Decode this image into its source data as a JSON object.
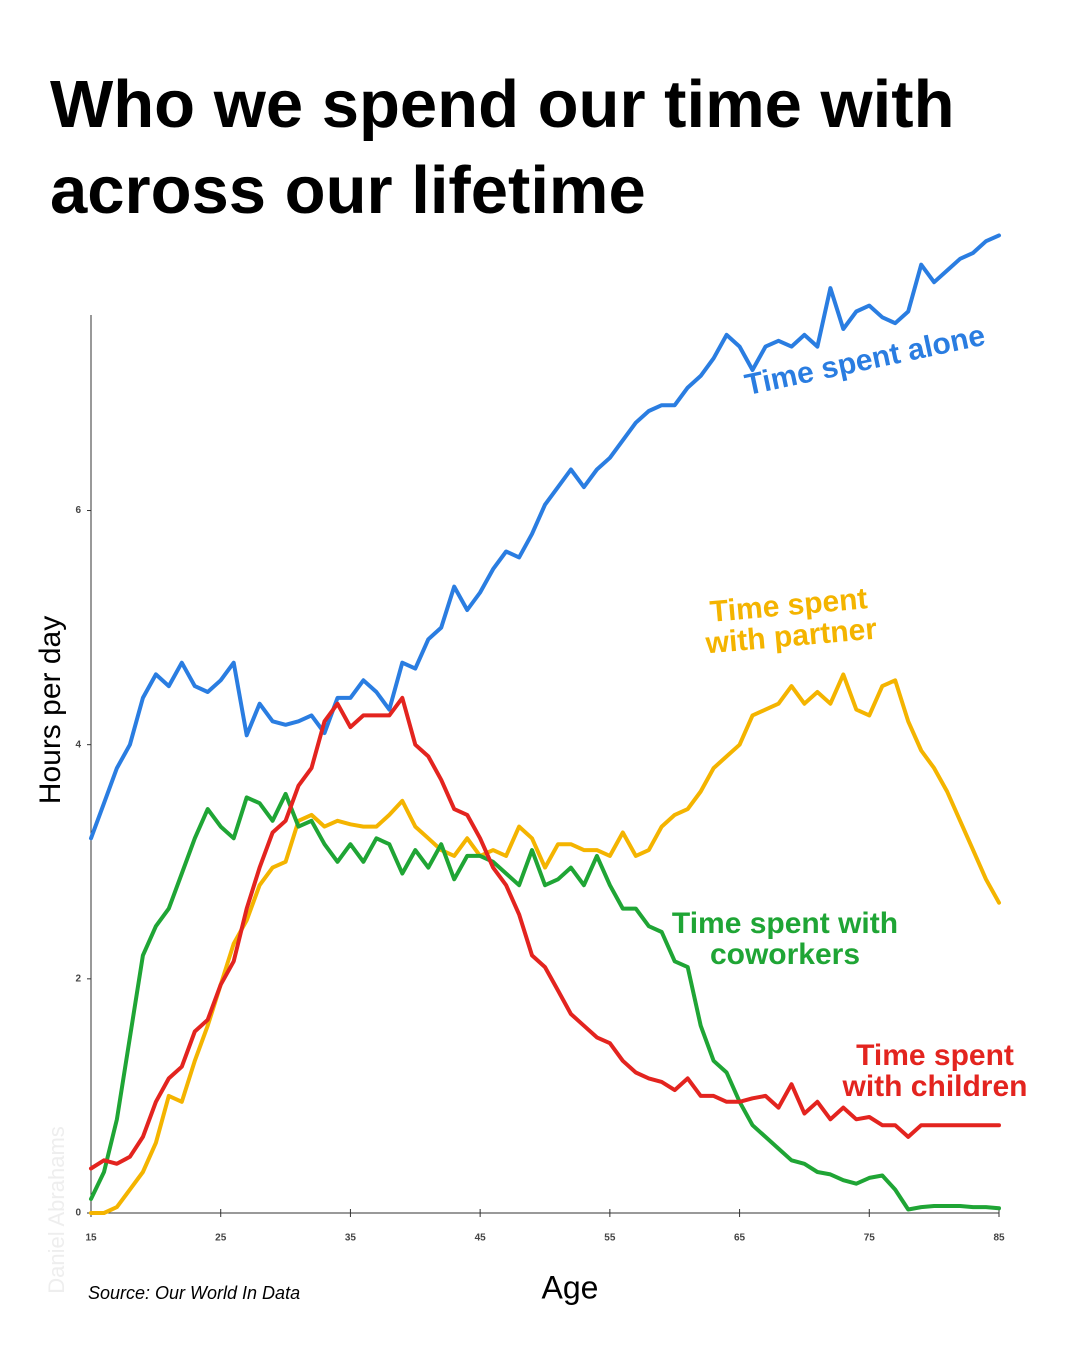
{
  "chart_data": {
    "type": "line",
    "title": "Who we spend our time with across our lifetime",
    "y_label": "Hours per day",
    "x_label": "Age",
    "source": "Source: Our World In Data",
    "credit": "Daniel Abrahams",
    "x": [
      15,
      16,
      17,
      18,
      19,
      20,
      21,
      22,
      23,
      24,
      25,
      26,
      27,
      28,
      29,
      30,
      31,
      32,
      33,
      34,
      35,
      36,
      37,
      38,
      39,
      40,
      41,
      42,
      43,
      44,
      45,
      46,
      47,
      48,
      49,
      50,
      51,
      52,
      53,
      54,
      55,
      56,
      57,
      58,
      59,
      60,
      61,
      62,
      63,
      64,
      65,
      66,
      67,
      68,
      69,
      70,
      71,
      72,
      73,
      74,
      75,
      76,
      77,
      78,
      79,
      80,
      81,
      82,
      83,
      84,
      85
    ],
    "xlim": [
      15,
      85
    ],
    "xticks": [
      15,
      25,
      35,
      45,
      55,
      65,
      75,
      85
    ],
    "ylim": [
      0,
      7.67
    ],
    "yticks": [
      0,
      2,
      4,
      6
    ],
    "series": [
      {
        "name": "Time spent alone",
        "color": "#2a7de1",
        "values": [
          3.2,
          3.5,
          3.8,
          4.0,
          4.4,
          4.6,
          4.5,
          4.7,
          4.5,
          4.45,
          4.55,
          4.7,
          4.08,
          4.35,
          4.2,
          4.17,
          4.2,
          4.25,
          4.1,
          4.4,
          4.4,
          4.55,
          4.45,
          4.3,
          4.7,
          4.65,
          4.9,
          5.0,
          5.35,
          5.15,
          5.3,
          5.5,
          5.65,
          5.6,
          5.8,
          6.05,
          6.2,
          6.35,
          6.2,
          6.35,
          6.45,
          6.6,
          6.75,
          6.85,
          6.9,
          6.9,
          7.05,
          7.15,
          7.3,
          7.5,
          7.4,
          7.2,
          7.4,
          7.45,
          7.4,
          7.5,
          7.4,
          7.9,
          7.55,
          7.7,
          7.75,
          7.65,
          7.6,
          7.7,
          8.1,
          7.95,
          8.05,
          8.15,
          8.2,
          8.3,
          8.35
        ]
      },
      {
        "name": "Time spent with partner",
        "color": "#f4b400",
        "values": [
          0,
          0,
          0.05,
          0.2,
          0.35,
          0.6,
          1.0,
          0.95,
          1.3,
          1.6,
          1.95,
          2.3,
          2.5,
          2.8,
          2.95,
          3.0,
          3.35,
          3.4,
          3.3,
          3.35,
          3.32,
          3.3,
          3.3,
          3.4,
          3.52,
          3.3,
          3.2,
          3.1,
          3.05,
          3.2,
          3.05,
          3.1,
          3.05,
          3.3,
          3.2,
          2.95,
          3.15,
          3.15,
          3.1,
          3.1,
          3.05,
          3.25,
          3.05,
          3.1,
          3.3,
          3.4,
          3.45,
          3.6,
          3.8,
          3.9,
          4.0,
          4.25,
          4.3,
          4.35,
          4.5,
          4.35,
          4.45,
          4.35,
          4.6,
          4.3,
          4.25,
          4.5,
          4.55,
          4.2,
          3.95,
          3.8,
          3.6,
          3.35,
          3.1,
          2.85,
          2.65
        ]
      },
      {
        "name": "Time spent with coworkers",
        "color": "#1fa535",
        "values": [
          0.12,
          0.35,
          0.8,
          1.5,
          2.2,
          2.45,
          2.6,
          2.9,
          3.2,
          3.45,
          3.3,
          3.2,
          3.55,
          3.5,
          3.35,
          3.58,
          3.3,
          3.35,
          3.15,
          3.0,
          3.15,
          3.0,
          3.2,
          3.15,
          2.9,
          3.1,
          2.95,
          3.15,
          2.85,
          3.05,
          3.05,
          3.0,
          2.9,
          2.8,
          3.1,
          2.8,
          2.85,
          2.95,
          2.8,
          3.05,
          2.8,
          2.6,
          2.6,
          2.45,
          2.4,
          2.15,
          2.1,
          1.6,
          1.3,
          1.2,
          0.95,
          0.75,
          0.65,
          0.55,
          0.45,
          0.42,
          0.35,
          0.33,
          0.28,
          0.25,
          0.3,
          0.32,
          0.2,
          0.03,
          0.05,
          0.06,
          0.06,
          0.06,
          0.05,
          0.05,
          0.04
        ]
      },
      {
        "name": "Time spent with children",
        "color": "#e3241f",
        "values": [
          0.38,
          0.45,
          0.42,
          0.48,
          0.65,
          0.95,
          1.15,
          1.25,
          1.55,
          1.65,
          1.95,
          2.15,
          2.6,
          2.95,
          3.25,
          3.35,
          3.65,
          3.8,
          4.2,
          4.35,
          4.15,
          4.25,
          4.25,
          4.25,
          4.4,
          4.0,
          3.9,
          3.7,
          3.45,
          3.4,
          3.2,
          2.95,
          2.8,
          2.55,
          2.2,
          2.1,
          1.9,
          1.7,
          1.6,
          1.5,
          1.45,
          1.3,
          1.2,
          1.15,
          1.12,
          1.05,
          1.15,
          1.0,
          1.0,
          0.95,
          0.95,
          0.98,
          1.0,
          0.9,
          1.1,
          0.85,
          0.95,
          0.8,
          0.9,
          0.8,
          0.82,
          0.75,
          0.75,
          0.65,
          0.75,
          0.75,
          0.75,
          0.75,
          0.75,
          0.75,
          0.75
        ]
      }
    ]
  }
}
